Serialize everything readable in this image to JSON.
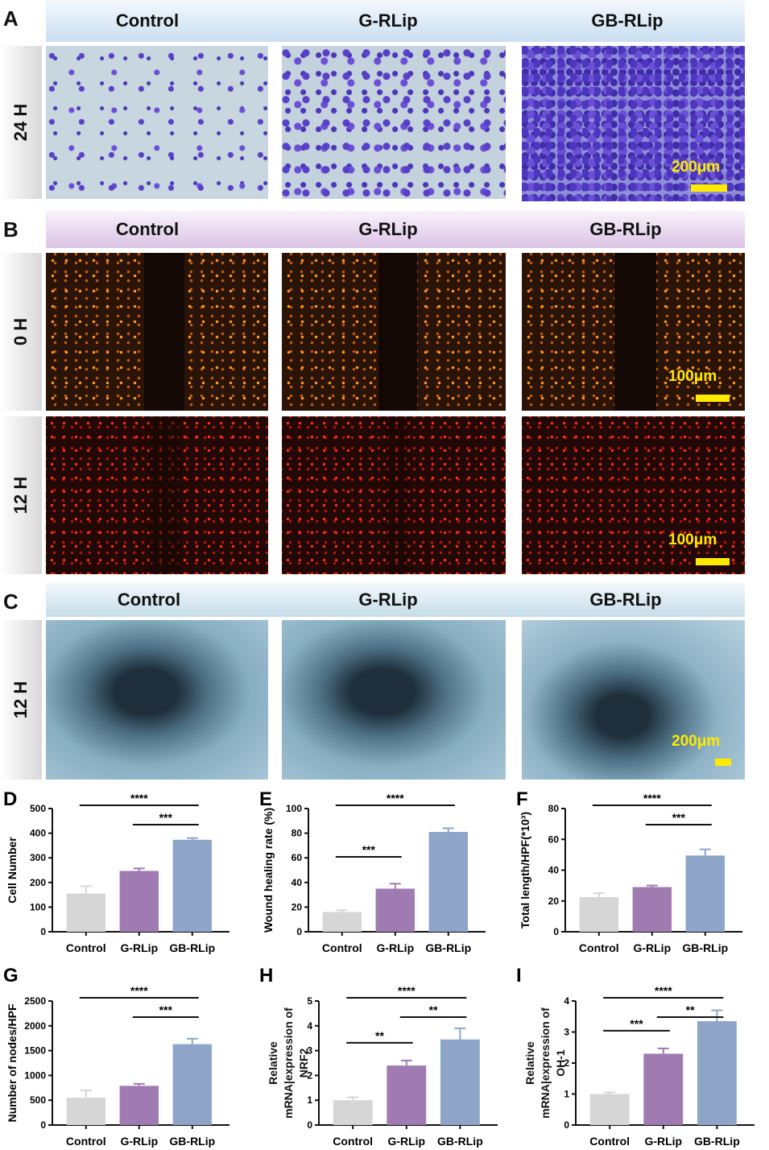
{
  "panels": {
    "A": "A",
    "B": "B",
    "C": "C",
    "D": "D",
    "E": "E",
    "F": "F",
    "G": "G",
    "H": "H",
    "I": "I"
  },
  "groups": [
    "Control",
    "G-RLip",
    "GB-RLip"
  ],
  "time_labels": {
    "a": "24 H",
    "b0": "0 H",
    "b12": "12 H",
    "c": "12 H"
  },
  "scale_bars": {
    "a": "200μm",
    "b0": "100μm",
    "b12": "100μm",
    "c": "200μm"
  },
  "colors": {
    "control": "#d6d6d6",
    "g_rlip": "#a07bb2",
    "gb_rlip": "#8ea5c9"
  },
  "chart_data": [
    {
      "id": "D",
      "type": "bar",
      "ylabel": "Cell Number",
      "categories": [
        "Control",
        "G-RLip",
        "GB-RLip"
      ],
      "values": [
        155,
        247,
        373
      ],
      "errors": [
        30,
        10,
        7
      ],
      "ylim": [
        0,
        500
      ],
      "yticks": [
        0,
        100,
        200,
        300,
        400,
        500
      ],
      "significance": [
        {
          "a": 0,
          "b": 2,
          "label": "****",
          "level": 2
        },
        {
          "a": 1,
          "b": 2,
          "label": "***",
          "level": 1
        }
      ]
    },
    {
      "id": "E",
      "type": "bar",
      "ylabel": "Wound healing rate (%)",
      "categories": [
        "Control",
        "G-RLip",
        "GB-RLip"
      ],
      "values": [
        16,
        35,
        81
      ],
      "errors": [
        1.5,
        4,
        3
      ],
      "ylim": [
        0,
        100
      ],
      "yticks": [
        0,
        20,
        40,
        60,
        80,
        100
      ],
      "significance": [
        {
          "a": 0,
          "b": 2,
          "label": "****",
          "level": 2
        },
        {
          "a": 0,
          "b": 1,
          "label": "***",
          "level": 0
        }
      ]
    },
    {
      "id": "F",
      "type": "bar",
      "ylabel": "Total length/HPF(*10³)",
      "categories": [
        "Control",
        "G-RLip",
        "GB-RLip"
      ],
      "values": [
        22.5,
        29,
        49.5
      ],
      "errors": [
        2.5,
        1,
        4
      ],
      "ylim": [
        0,
        80
      ],
      "yticks": [
        0,
        20,
        40,
        60,
        80
      ],
      "significance": [
        {
          "a": 0,
          "b": 2,
          "label": "****",
          "level": 2
        },
        {
          "a": 1,
          "b": 2,
          "label": "***",
          "level": 1
        }
      ]
    },
    {
      "id": "G",
      "type": "bar",
      "ylabel": "Number of nodes/HPF",
      "categories": [
        "Control",
        "G-RLip",
        "GB-RLip"
      ],
      "values": [
        550,
        790,
        1630
      ],
      "errors": [
        150,
        40,
        110
      ],
      "ylim": [
        0,
        2500
      ],
      "yticks": [
        0,
        500,
        1000,
        1500,
        2000,
        2500
      ],
      "significance": [
        {
          "a": 0,
          "b": 2,
          "label": "****",
          "level": 2
        },
        {
          "a": 1,
          "b": 2,
          "label": "***",
          "level": 1
        }
      ]
    },
    {
      "id": "H",
      "type": "bar",
      "ylabel": "Relative mRNA|expression of NRF2",
      "categories": [
        "Control",
        "G-RLip",
        "GB-RLip"
      ],
      "values": [
        1.0,
        2.4,
        3.45
      ],
      "errors": [
        0.12,
        0.2,
        0.45
      ],
      "ylim": [
        0,
        5
      ],
      "yticks": [
        0,
        1,
        2,
        3,
        4,
        5
      ],
      "significance": [
        {
          "a": 0,
          "b": 2,
          "label": "****",
          "level": 2
        },
        {
          "a": 1,
          "b": 2,
          "label": "**",
          "level": 1
        },
        {
          "a": 0,
          "b": 1,
          "label": "**",
          "level": 0
        }
      ]
    },
    {
      "id": "I",
      "type": "bar",
      "ylabel": "Relative mRNA|expression of OH-1",
      "categories": [
        "Control",
        "G-RLip",
        "GB-RLip"
      ],
      "values": [
        1.0,
        2.3,
        3.35
      ],
      "errors": [
        0.05,
        0.17,
        0.35
      ],
      "ylim": [
        0,
        4
      ],
      "yticks": [
        0,
        1,
        2,
        3,
        4
      ],
      "significance": [
        {
          "a": 0,
          "b": 2,
          "label": "****",
          "level": 2
        },
        {
          "a": 1,
          "b": 2,
          "label": "**",
          "level": 1
        },
        {
          "a": 0,
          "b": 1,
          "label": "***",
          "level": 0
        }
      ]
    }
  ]
}
